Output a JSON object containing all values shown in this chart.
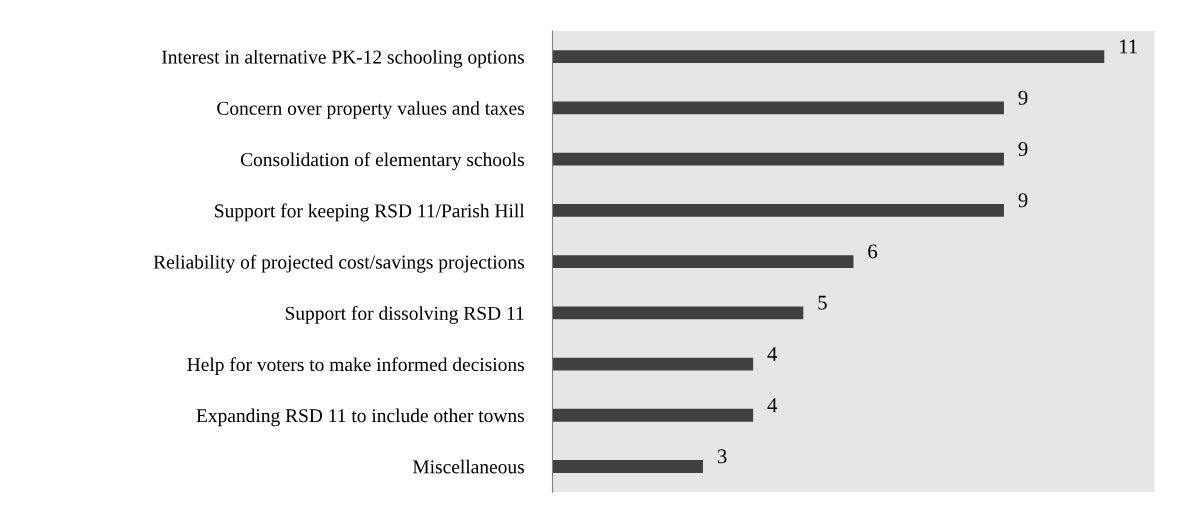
{
  "chart_data": {
    "type": "bar",
    "orientation": "horizontal",
    "categories": [
      "Interest in alternative PK-12 schooling options",
      "Concern over property values and taxes",
      "Consolidation of elementary schools",
      "Support for keeping RSD 11/Parish Hill",
      "Reliability of projected cost/savings projections",
      "Support for dissolving RSD 11",
      "Help for voters to make informed decisions",
      "Expanding RSD 11 to include other towns",
      "Miscellaneous"
    ],
    "values": [
      11,
      9,
      9,
      9,
      6,
      5,
      4,
      4,
      3
    ],
    "color": "#404040",
    "xlim": [
      0,
      12
    ],
    "data_labels": true,
    "grid": false,
    "tick_labels": "y"
  }
}
